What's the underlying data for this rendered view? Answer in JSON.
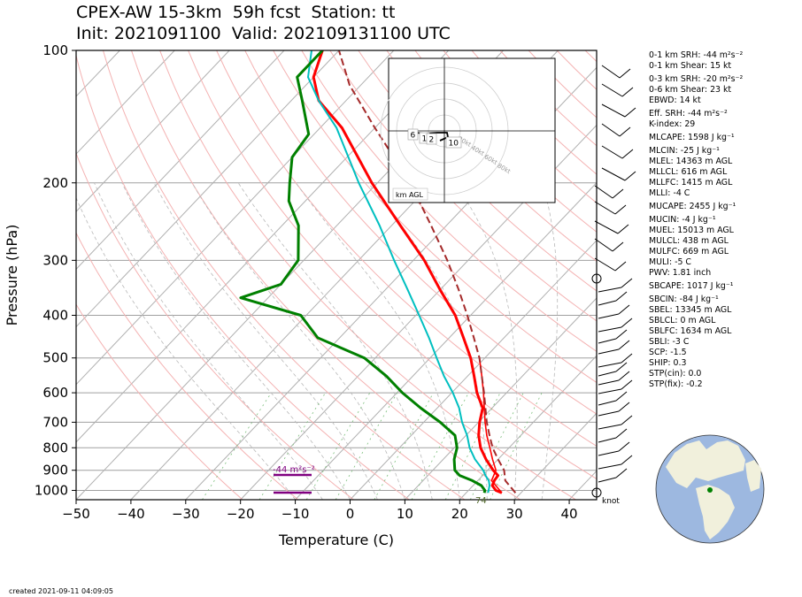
{
  "header": {
    "title_line1": "CPEX-AW 15-3km  59h fcst  Station: tt",
    "title_line2": "Init: 2021091100  Valid: 202109131100 UTC"
  },
  "footer": {
    "created": "created 2021-09-11 04:09:05"
  },
  "indices": [
    "0-1 km SRH: -44 m²s⁻²",
    "0-1 km Shear: 15 kt",
    "0-3 km SRH: -20 m²s⁻²",
    "0-6 km Shear: 23 kt",
    "EBWD: 14 kt",
    "Eff. SRH: -44 m²s⁻²",
    "K-index: 29",
    "MLCAPE: 1598 J kg⁻¹",
    "MLCIN: -25 J kg⁻¹",
    "MLEL: 14363 m AGL",
    "MLLCL: 616 m AGL",
    "MLLFC: 1415 m AGL",
    "MLLI: -4 C",
    "MUCAPE: 2455 J kg⁻¹",
    "MUCIN: -4 J kg⁻¹",
    "MUEL: 15013 m AGL",
    "MULCL: 438 m AGL",
    "MULFC: 669 m AGL",
    "MULI: -5 C",
    "PWV: 1.81 inch",
    "SBCAPE: 1017 J kg⁻¹",
    "SBCIN: -84 J kg⁻¹",
    "SBEL: 13345 m AGL",
    "SBLCL: 0 m AGL",
    "SBLFC: 1634 m AGL",
    "SBLI: -3 C",
    "SCP: -1.5",
    "SHIP: 0.3",
    "STP(cin): 0.0",
    "STP(fix): -0.2"
  ],
  "chart_data": {
    "type": "line",
    "title": "CPEX-AW 15-3km  59h fcst  Station: tt",
    "xlabel": "Temperature (C)",
    "ylabel": "Pressure (hPa)",
    "xlim": [
      -50,
      45
    ],
    "ylim": [
      1050,
      100
    ],
    "y_scale": "log",
    "skew": true,
    "x_ticks": [
      "−50",
      "−40",
      "−30",
      "−20",
      "−10",
      "0",
      "10",
      "20",
      "30",
      "40"
    ],
    "y_ticks": [
      "100",
      "200",
      "300",
      "400",
      "500",
      "600",
      "700",
      "800",
      "900",
      "1000"
    ],
    "series": [
      {
        "role": "temperature",
        "color": "#ff0000",
        "points": [
          [
            1013,
            26.5
          ],
          [
            1000,
            25.0
          ],
          [
            975,
            23.5
          ],
          [
            950,
            23.0
          ],
          [
            925,
            22.8
          ],
          [
            900,
            21.0
          ],
          [
            850,
            17.8
          ],
          [
            800,
            14.8
          ],
          [
            750,
            12.3
          ],
          [
            700,
            10.2
          ],
          [
            650,
            8.3
          ],
          [
            600,
            4.6
          ],
          [
            550,
            1.2
          ],
          [
            500,
            -2.6
          ],
          [
            450,
            -7.4
          ],
          [
            400,
            -12.8
          ],
          [
            350,
            -20.0
          ],
          [
            300,
            -28.0
          ],
          [
            250,
            -38.4
          ],
          [
            200,
            -51.0
          ],
          [
            150,
            -66.0
          ],
          [
            130,
            -75.0
          ],
          [
            115,
            -80.0
          ],
          [
            100,
            -83.0
          ]
        ]
      },
      {
        "role": "parcel",
        "color": "#ff0000",
        "points": [
          [
            1013,
            26.5
          ],
          [
            950,
            22.5
          ],
          [
            900,
            21.5
          ],
          [
            850,
            19.0
          ],
          [
            800,
            16.5
          ],
          [
            750,
            13.8
          ],
          [
            700,
            11.2
          ],
          [
            650,
            8.6
          ],
          [
            600,
            5.8
          ],
          [
            550,
            2.6
          ],
          [
            500,
            -1.0
          ]
        ]
      },
      {
        "role": "virtual-temperature",
        "color": "#a52a2a",
        "dashed": true,
        "points": [
          [
            1013,
            29.0
          ],
          [
            950,
            25.0
          ],
          [
            900,
            23.0
          ],
          [
            850,
            20.0
          ],
          [
            800,
            17.0
          ],
          [
            750,
            14.3
          ],
          [
            700,
            11.5
          ],
          [
            650,
            8.8
          ],
          [
            600,
            5.9
          ],
          [
            550,
            2.6
          ],
          [
            500,
            -1.0
          ],
          [
            450,
            -5.5
          ],
          [
            400,
            -10.6
          ],
          [
            350,
            -16.6
          ],
          [
            300,
            -23.8
          ],
          [
            250,
            -32.8
          ],
          [
            200,
            -44.0
          ],
          [
            150,
            -60.0
          ],
          [
            120,
            -72.0
          ],
          [
            100,
            -80.0
          ]
        ]
      },
      {
        "role": "wet-bulb",
        "color": "#00bfc0",
        "points": [
          [
            1013,
            24.0
          ],
          [
            975,
            23.0
          ],
          [
            950,
            22.0
          ],
          [
            925,
            20.5
          ],
          [
            900,
            19.2
          ],
          [
            850,
            15.8
          ],
          [
            800,
            12.8
          ],
          [
            750,
            10.2
          ],
          [
            700,
            7.0
          ],
          [
            650,
            4.0
          ],
          [
            600,
            0.2
          ],
          [
            550,
            -4.3
          ],
          [
            500,
            -8.8
          ],
          [
            450,
            -13.7
          ],
          [
            400,
            -19.4
          ],
          [
            350,
            -25.9
          ],
          [
            300,
            -33.5
          ],
          [
            250,
            -42.2
          ],
          [
            200,
            -53.4
          ],
          [
            150,
            -67.0
          ],
          [
            130,
            -75.0
          ],
          [
            115,
            -81.0
          ],
          [
            100,
            -85.0
          ]
        ]
      },
      {
        "role": "dewpoint",
        "color": "#008000",
        "points": [
          [
            1013,
            23.3
          ],
          [
            1000,
            23.0
          ],
          [
            975,
            21.5
          ],
          [
            950,
            19.0
          ],
          [
            925,
            15.8
          ],
          [
            900,
            14.0
          ],
          [
            850,
            12.0
          ],
          [
            800,
            10.5
          ],
          [
            750,
            8.0
          ],
          [
            700,
            3.0
          ],
          [
            650,
            -3.0
          ],
          [
            600,
            -9.0
          ],
          [
            550,
            -14.8
          ],
          [
            500,
            -22.0
          ],
          [
            450,
            -34.0
          ],
          [
            400,
            -41.0
          ],
          [
            365,
            -55.0
          ],
          [
            340,
            -50.0
          ],
          [
            300,
            -51.0
          ],
          [
            250,
            -57.0
          ],
          [
            220,
            -63.0
          ],
          [
            200,
            -66.0
          ],
          [
            175,
            -70.0
          ],
          [
            155,
            -71.0
          ],
          [
            130,
            -78.0
          ],
          [
            115,
            -83.0
          ],
          [
            100,
            -83.0
          ]
        ]
      }
    ],
    "annotations": [
      "-44 m²s⁻²",
      "74",
      "km AGL",
      "knot"
    ],
    "hodograph": {
      "rings_kt": [
        20,
        40,
        60,
        80
      ],
      "ring_labels": [
        "20kt",
        "40kt",
        "60kt",
        "80kt"
      ],
      "height_labels": [
        "6",
        "1",
        "2",
        "10"
      ],
      "units_label": "km AGL"
    },
    "legend": "none"
  }
}
